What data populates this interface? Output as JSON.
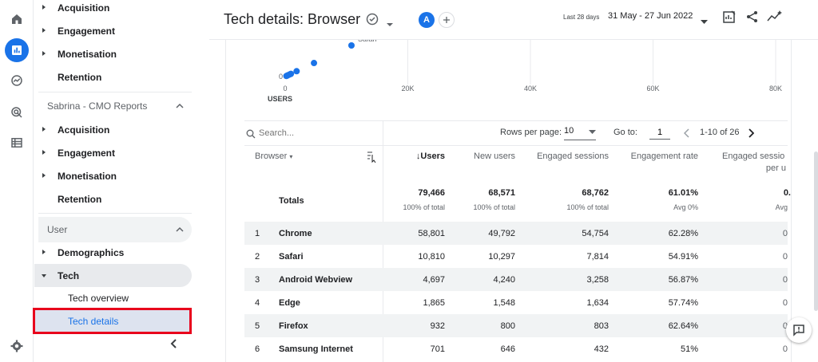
{
  "sidebar": {
    "sections": [
      {
        "items": [
          {
            "label": "Acquisition"
          },
          {
            "label": "Engagement"
          },
          {
            "label": "Monetisation"
          },
          {
            "label": "Retention"
          }
        ]
      },
      {
        "title": "Sabrina - CMO Reports",
        "items": [
          {
            "label": "Acquisition"
          },
          {
            "label": "Engagement"
          },
          {
            "label": "Monetisation"
          },
          {
            "label": "Retention"
          }
        ]
      },
      {
        "title": "User",
        "items": [
          {
            "label": "Demographics"
          },
          {
            "label": "Tech"
          }
        ],
        "tech_children": [
          {
            "label": "Tech overview"
          },
          {
            "label": "Tech details"
          }
        ]
      }
    ]
  },
  "header": {
    "title": "Tech details: Browser",
    "avatar_letter": "A",
    "date_label": "Last 28 days",
    "date_range": "31 May - 27 Jun 2022"
  },
  "chart": {
    "chart_data": {
      "type": "scatter",
      "xlabel": "USERS",
      "x_ticks": [
        "0",
        "20K",
        "40K",
        "60K",
        "80K"
      ],
      "y_ticks": [
        "0"
      ],
      "points": [
        {
          "x": 10810,
          "label": "Safari"
        },
        {
          "x": 4697
        },
        {
          "x": 1865
        },
        {
          "x": 932
        },
        {
          "x": 701
        },
        {
          "x": 400
        },
        {
          "x": 200
        }
      ],
      "xlim": [
        0,
        80000
      ]
    }
  },
  "table_controls": {
    "search_placeholder": "Search...",
    "rows_per_page_label": "Rows per page:",
    "rows_per_page": "10",
    "goto_label": "Go to:",
    "goto_value": "1",
    "range": "1-10 of 26"
  },
  "table": {
    "columns": [
      {
        "label": "Browser"
      },
      {
        "label": "Users"
      },
      {
        "label": "New users"
      },
      {
        "label": "Engaged sessions"
      },
      {
        "label": "Engagement rate"
      },
      {
        "label": "Engaged sessio",
        "label2": "per u"
      }
    ],
    "totals": {
      "label": "Totals",
      "values": [
        "79,466",
        "68,571",
        "68,762",
        "61.01%",
        "0."
      ],
      "subs": [
        "100% of total",
        "100% of total",
        "100% of total",
        "Avg 0%",
        "Avg"
      ]
    },
    "rows": [
      {
        "n": "1",
        "name": "Chrome",
        "v": [
          "58,801",
          "49,792",
          "54,754",
          "62.28%",
          "0"
        ]
      },
      {
        "n": "2",
        "name": "Safari",
        "v": [
          "10,810",
          "10,297",
          "7,814",
          "54.91%",
          "0"
        ]
      },
      {
        "n": "3",
        "name": "Android Webview",
        "v": [
          "4,697",
          "4,240",
          "3,258",
          "56.87%",
          "0"
        ]
      },
      {
        "n": "4",
        "name": "Edge",
        "v": [
          "1,865",
          "1,548",
          "1,634",
          "57.74%",
          "0"
        ]
      },
      {
        "n": "5",
        "name": "Firefox",
        "v": [
          "932",
          "800",
          "803",
          "62.64%",
          "0"
        ]
      },
      {
        "n": "6",
        "name": "Samsung Internet",
        "v": [
          "701",
          "646",
          "432",
          "51%",
          "0"
        ]
      }
    ]
  },
  "colors": {
    "accent": "#1a73e8",
    "highlight_box": "#e8001c"
  }
}
